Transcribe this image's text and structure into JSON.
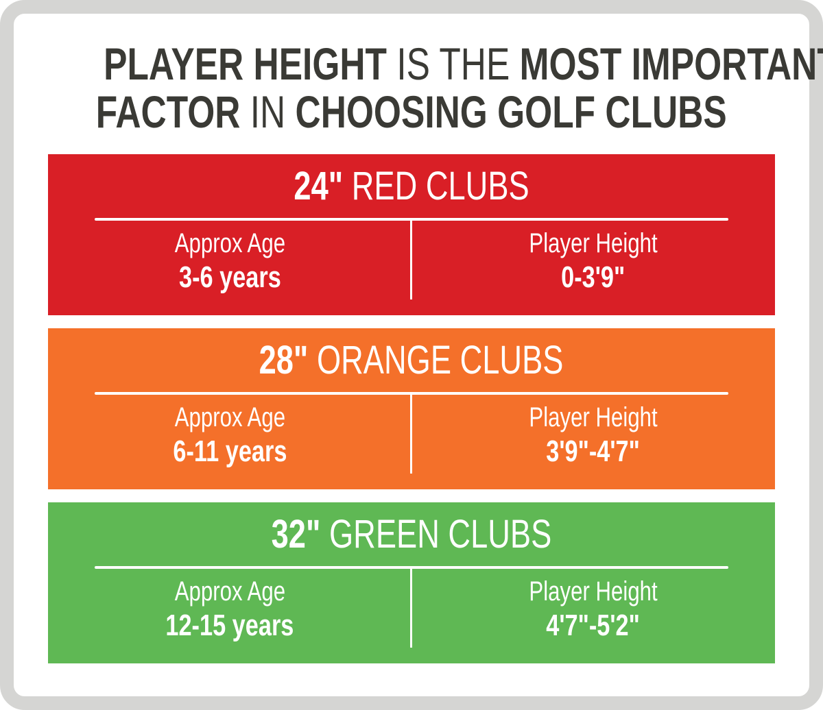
{
  "title": {
    "line1": [
      {
        "text": "PLAYER HEIGHT",
        "weight": "bold"
      },
      {
        "text": "IS THE",
        "weight": "light"
      },
      {
        "text": "MOST IMPORTANT",
        "weight": "bold"
      }
    ],
    "line2": [
      {
        "text": "FACTOR",
        "weight": "bold"
      },
      {
        "text": "IN",
        "weight": "light"
      },
      {
        "text": "CHOOSING GOLF CLUBS",
        "weight": "bold"
      }
    ],
    "color": "#3a3a35"
  },
  "clubs": [
    {
      "size": "24\"",
      "name": "RED CLUBS",
      "color": "#d91f26",
      "age_label": "Approx Age",
      "age": "3-6 years",
      "height_label": "Player Height",
      "height": "0-3'9\""
    },
    {
      "size": "28\"",
      "name": "ORANGE CLUBS",
      "color": "#f4702a",
      "age_label": "Approx Age",
      "age": "6-11 years",
      "height_label": "Player Height",
      "height": "3'9\"-4'7\""
    },
    {
      "size": "32\"",
      "name": "GREEN CLUBS",
      "color": "#5fb854",
      "age_label": "Approx Age",
      "age": "12-15 years",
      "height_label": "Player Height",
      "height": "4'7\"-5'2\""
    }
  ]
}
